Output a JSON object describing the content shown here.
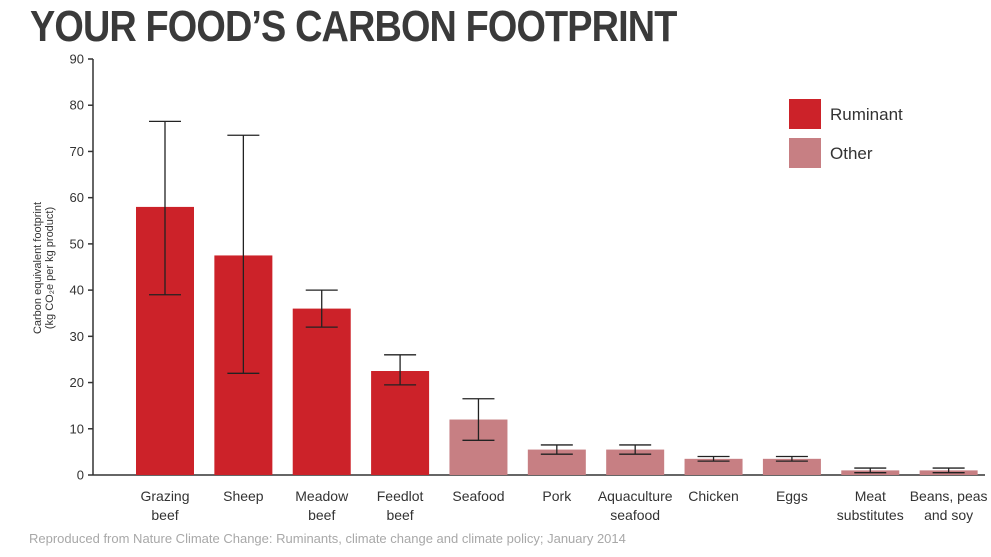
{
  "title": "YOUR FOOD’S CARBON FOOTPRINT",
  "source": "Reproduced from Nature Climate Change: Ruminants, climate change and climate policy; January 2014",
  "colors": {
    "ruminant": "#cc2229",
    "other": "#c77f83",
    "axis": "#333333",
    "error": "#222222"
  },
  "chart_data": {
    "type": "bar",
    "title": "YOUR FOOD’S CARBON FOOTPRINT",
    "ylabel": [
      "Carbon equivalent footprint",
      "(kg CO₂e per kg product)"
    ],
    "xlabel": "",
    "ylim": [
      0,
      90
    ],
    "yticks": [
      0,
      10,
      20,
      30,
      40,
      50,
      60,
      70,
      80,
      90
    ],
    "grid": false,
    "legend_position": "top-right",
    "legend": [
      {
        "name": "Ruminant",
        "group": "ruminant"
      },
      {
        "name": "Other",
        "group": "other"
      }
    ],
    "categories": [
      [
        "Grazing",
        "beef"
      ],
      [
        "Sheep"
      ],
      [
        "Meadow",
        "beef"
      ],
      [
        "Feedlot",
        "beef"
      ],
      [
        "Seafood"
      ],
      [
        "Pork"
      ],
      [
        "Aquaculture",
        "seafood"
      ],
      [
        "Chicken"
      ],
      [
        "Eggs"
      ],
      [
        "Meat",
        "substitutes"
      ],
      [
        "Beans, peas",
        "and soy"
      ]
    ],
    "groups": [
      "ruminant",
      "ruminant",
      "ruminant",
      "ruminant",
      "other",
      "other",
      "other",
      "other",
      "other",
      "other",
      "other"
    ],
    "values": [
      58,
      47.5,
      36,
      22.5,
      12,
      5.5,
      5.5,
      3.5,
      3.5,
      1,
      1
    ],
    "error_low": [
      39,
      22,
      32,
      19.5,
      7.5,
      4.5,
      4.5,
      3,
      3,
      0.5,
      0.5
    ],
    "error_high": [
      76.5,
      73.5,
      40,
      26,
      16.5,
      6.5,
      6.5,
      4,
      4,
      1.5,
      1.5
    ]
  }
}
